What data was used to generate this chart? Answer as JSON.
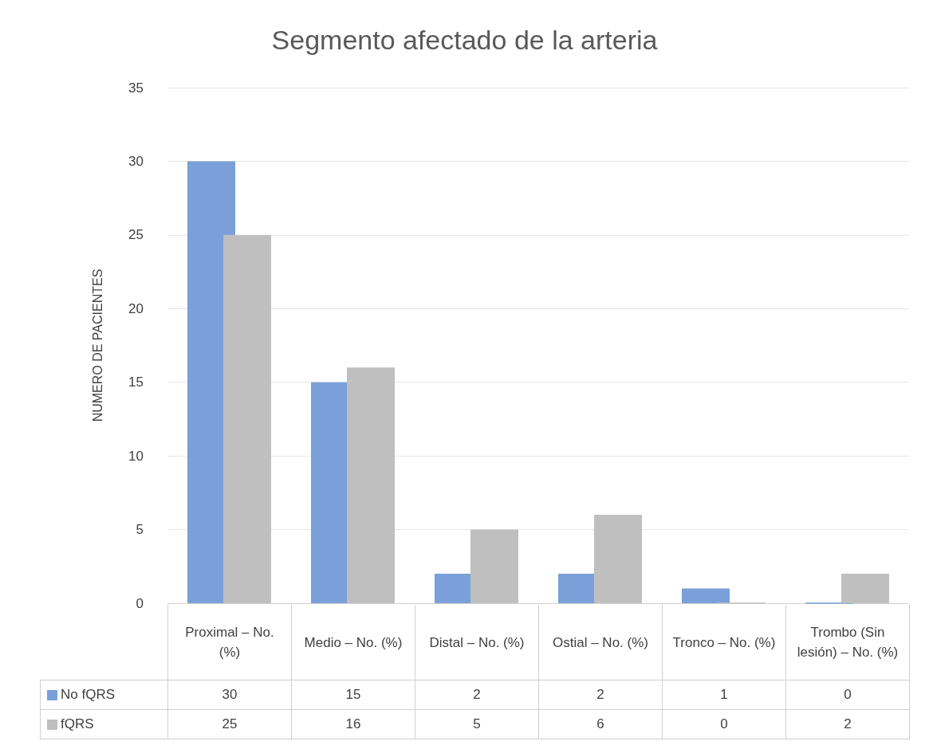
{
  "chart_data": {
    "type": "bar",
    "title": "Segmento afectado de la arteria",
    "ylabel": "NUMERO DE PACIENTES",
    "categories": [
      "Proximal – No. (%)",
      "Medio – No. (%)",
      "Distal – No. (%)",
      "Ostial – No. (%)",
      "Tronco – No. (%)",
      "Trombo (Sin lesión) – No. (%)"
    ],
    "series": [
      {
        "name": "No fQRS",
        "color": "#7b9fd8",
        "values": [
          30,
          15,
          2,
          2,
          1,
          0
        ]
      },
      {
        "name": "fQRS",
        "color": "#bfbfbf",
        "values": [
          25,
          16,
          5,
          6,
          0,
          2
        ]
      }
    ],
    "ylim": [
      0,
      35
    ],
    "yticks": [
      0,
      5,
      10,
      15,
      20,
      25,
      30,
      35
    ],
    "grid": "y",
    "legend": "bottom",
    "data_labels": true
  }
}
